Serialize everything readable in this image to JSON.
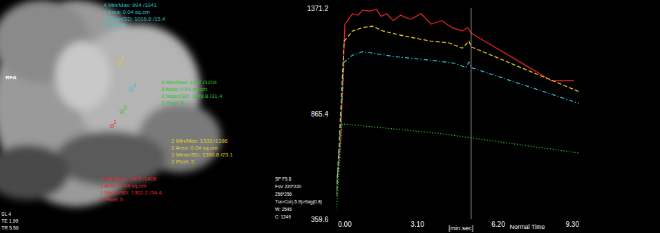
{
  "image_panel": {
    "label": "RFA",
    "info": [
      "SL 4",
      "TE 1.99",
      "TR 5.56"
    ],
    "rois": [
      {
        "id": "1",
        "color": "#e8262a",
        "stats": [
          "1 Min/Max: 1309 /1406",
          "1 Area: 0.04 sq.cm",
          "1 Mean/SD: 1362.2 /34.4",
          "1 Pixel: 5"
        ]
      },
      {
        "id": "2",
        "color": "#e8d02a",
        "stats": [
          "2 Min/Max: 1333 /1386",
          "2 Area: 0.04 sq.cm",
          "2 Mean/SD: 1360.8 /23.1",
          "2 Pixel: 5"
        ]
      },
      {
        "id": "3",
        "color": "#2ec42e",
        "stats": [
          "3 Min/Max: 1107 /1204",
          "3 Area: 0.04 sq.cm",
          "3 Mean/SD: 1149.8 /31.4",
          "3 Pixel: 5"
        ]
      },
      {
        "id": "4",
        "color": "#2ec4d0",
        "stats": [
          "4 Min/Max: 994 /1041",
          "4 Area: 0.04 sq.cm",
          "4 Mean/SD: 1016.8 /15.4",
          "4 Pixel: 5"
        ]
      }
    ]
  },
  "scan_info": [
    "SP F5.8",
    "FoV 220*220",
    "256*256",
    "Tra>Cor(-5.9)>Sag(0.8)",
    "W: 2546",
    "C: 1249"
  ],
  "chart_data": {
    "type": "line",
    "x_label": "[min.sec]",
    "mode_label": "Normal Time",
    "xlim": [
      0,
      9.3
    ],
    "ylim": [
      359.6,
      1371.2
    ],
    "xticks": [
      {
        "value": 0,
        "label": "0.00"
      },
      {
        "value": 3.1,
        "label": "3.10"
      },
      {
        "value": 6.2,
        "label": "6.20"
      },
      {
        "value": 9.3,
        "label": "9.30"
      }
    ],
    "yticks": [
      359.6,
      865.4,
      1371.2
    ],
    "grid": false,
    "cursor_x": 5.16,
    "series": [
      {
        "color": "#e8262a",
        "line_style": "solid",
        "x": [
          0,
          0.16,
          0.32,
          0.61,
          0.82,
          1.0,
          1.26,
          1.53,
          1.71,
          1.92,
          2.18,
          2.45,
          2.84,
          3.24,
          3.63,
          4.03,
          4.42,
          4.82,
          5.03,
          5.16,
          8.24,
          9.11
        ],
        "values": [
          518,
          750,
          1295,
          1345,
          1338,
          1361,
          1358,
          1365,
          1332,
          1345,
          1312,
          1338,
          1318,
          1345,
          1295,
          1312,
          1279,
          1262,
          1279,
          1252,
          1024,
          1024
        ]
      },
      {
        "color": "#e8d02a",
        "line_style": "dashed",
        "x": [
          0,
          0.29,
          0.61,
          1.0,
          1.39,
          1.79,
          2.32,
          2.97,
          3.63,
          4.29,
          4.82,
          5.08,
          5.16,
          9.3
        ],
        "values": [
          469,
          1213,
          1262,
          1279,
          1285,
          1262,
          1246,
          1229,
          1213,
          1206,
          1180,
          1213,
          1186,
          971
        ]
      },
      {
        "color": "#2ec4d0",
        "line_style": "dashdot",
        "x": [
          0,
          0.29,
          0.61,
          1.0,
          1.53,
          2.18,
          2.97,
          3.76,
          4.55,
          4.95,
          5.08,
          5.16,
          9.3
        ],
        "values": [
          485,
          1113,
          1146,
          1163,
          1153,
          1140,
          1130,
          1120,
          1107,
          1087,
          1113,
          1087,
          915
        ]
      },
      {
        "color": "#2ec42e",
        "line_style": "dotted",
        "x": [
          0,
          0.21,
          0.87,
          1.92,
          2.97,
          4.03,
          5.16,
          9.3
        ],
        "values": [
          403,
          816,
          809,
          796,
          783,
          770,
          750,
          677
        ]
      }
    ]
  }
}
